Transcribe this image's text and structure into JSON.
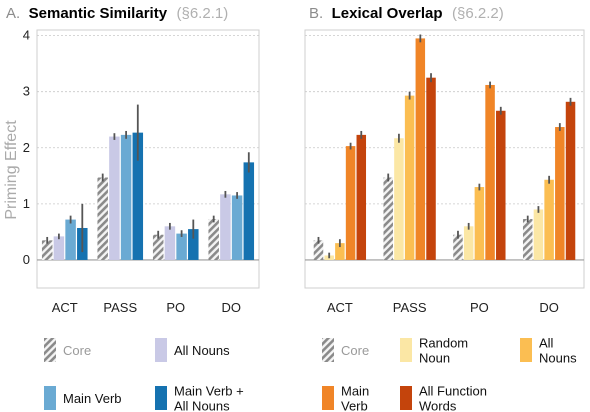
{
  "chart_data": [
    {
      "type": "bar",
      "panel_letter": "A.",
      "title": "Semantic Similarity",
      "title_ref": "(§6.2.1)",
      "ylabel": "Priming Effect",
      "ylim": [
        -0.5,
        4.1
      ],
      "yticks": [
        0,
        1,
        2,
        3,
        4
      ],
      "grid": true,
      "categories": [
        "ACT",
        "PASS",
        "PO",
        "DO"
      ],
      "series": [
        {
          "name": "Core",
          "color": "#9a9a9a",
          "pattern": "hatch",
          "values": [
            0.35,
            1.47,
            0.45,
            0.73
          ],
          "errors": [
            0.06,
            0.07,
            0.07,
            0.06
          ]
        },
        {
          "name": "All Nouns",
          "color": "#c9c9e6",
          "values": [
            0.42,
            2.2,
            0.6,
            1.17
          ],
          "errors": [
            0.05,
            0.06,
            0.06,
            0.06
          ]
        },
        {
          "name": "Main Verb",
          "color": "#6aaad3",
          "values": [
            0.72,
            2.23,
            0.47,
            1.15
          ],
          "errors": [
            0.07,
            0.07,
            0.06,
            0.06
          ]
        },
        {
          "name": "Main Verb + All Nouns",
          "color": "#1572b0",
          "values": [
            0.57,
            2.27,
            0.55,
            1.74
          ],
          "errors": [
            0.43,
            0.5,
            0.17,
            0.18
          ]
        }
      ],
      "legend": {
        "placement": "bottom",
        "items": [
          {
            "label": "Core",
            "color": "#9a9a9a",
            "pattern": "hatch"
          },
          {
            "label": "All Nouns",
            "color": "#c9c9e6"
          },
          {
            "label": "Main Verb",
            "color": "#6aaad3"
          },
          {
            "label": "Main Verb +\nAll Nouns",
            "color": "#1572b0"
          }
        ]
      }
    },
    {
      "type": "bar",
      "panel_letter": "B.",
      "title": "Lexical Overlap",
      "title_ref": "(§6.2.2)",
      "ylabel": "",
      "ylim": [
        -0.5,
        4.1
      ],
      "yticks": [
        0,
        1,
        2,
        3,
        4
      ],
      "grid": true,
      "categories": [
        "ACT",
        "PASS",
        "PO",
        "DO"
      ],
      "series": [
        {
          "name": "Core",
          "color": "#9a9a9a",
          "pattern": "hatch",
          "values": [
            0.35,
            1.47,
            0.45,
            0.73
          ],
          "errors": [
            0.06,
            0.07,
            0.07,
            0.06
          ]
        },
        {
          "name": "Random Noun",
          "color": "#fbe7a5",
          "values": [
            0.08,
            2.17,
            0.6,
            0.9
          ],
          "errors": [
            0.05,
            0.08,
            0.06,
            0.06
          ]
        },
        {
          "name": "All Nouns",
          "color": "#fbbe52",
          "values": [
            0.3,
            2.93,
            1.3,
            1.43
          ],
          "errors": [
            0.07,
            0.07,
            0.06,
            0.07
          ]
        },
        {
          "name": "Main Verb",
          "color": "#f08527",
          "values": [
            2.03,
            3.95,
            3.12,
            2.37
          ],
          "errors": [
            0.06,
            0.07,
            0.06,
            0.07
          ]
        },
        {
          "name": "All Function Words",
          "color": "#c4440c",
          "values": [
            2.23,
            3.25,
            2.66,
            2.82
          ],
          "errors": [
            0.07,
            0.08,
            0.07,
            0.07
          ]
        }
      ],
      "legend": {
        "placement": "bottom",
        "items": [
          {
            "label": "Core",
            "color": "#9a9a9a",
            "pattern": "hatch"
          },
          {
            "label": "Random\nNoun",
            "color": "#fbe7a5"
          },
          {
            "label": "All\nNouns",
            "color": "#fbbe52"
          },
          {
            "label": "Main\nVerb",
            "color": "#f08527"
          },
          {
            "label": "All Function\nWords",
            "color": "#c4440c"
          }
        ]
      }
    }
  ]
}
